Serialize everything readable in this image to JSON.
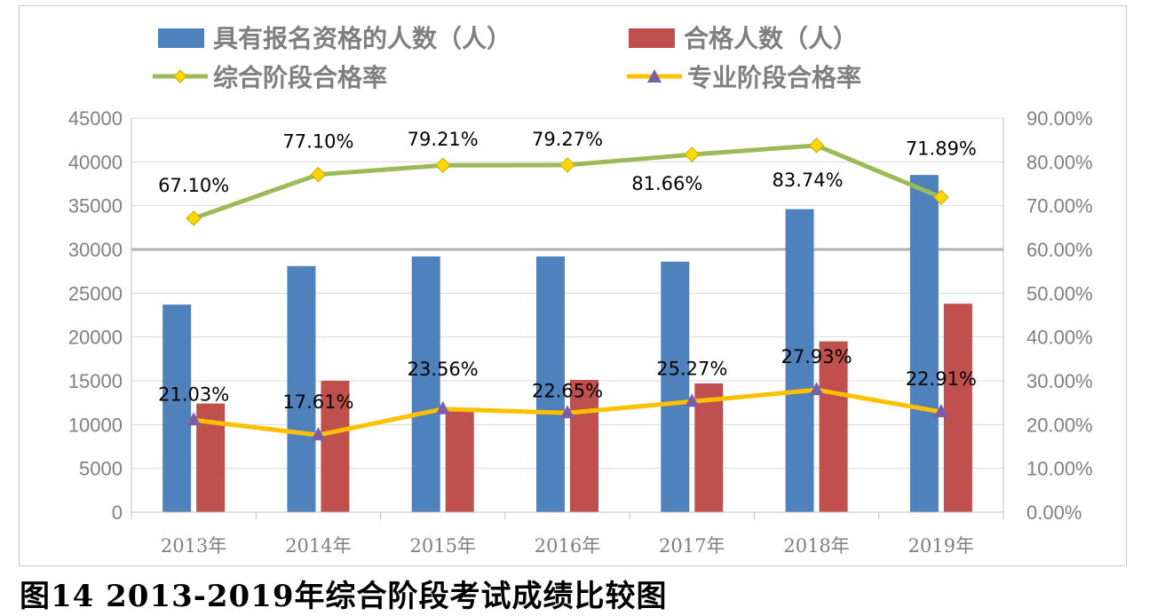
{
  "caption": "图14  2013-2019年综合阶段考试成绩比较图",
  "chart_data": {
    "type": "bar",
    "categories": [
      "2013年",
      "2014年",
      "2015年",
      "2016年",
      "2017年",
      "2018年",
      "2019年"
    ],
    "series": [
      {
        "name": "具有报名资格的人数（人）",
        "kind": "bar",
        "axis": "left",
        "color": "#4f81bd",
        "values": [
          23700,
          28100,
          29200,
          29200,
          28600,
          34600,
          38500
        ]
      },
      {
        "name": "合格人数（人）",
        "kind": "bar",
        "axis": "left",
        "color": "#c0504d",
        "values": [
          12400,
          15000,
          11800,
          15100,
          14700,
          19500,
          23800
        ]
      },
      {
        "name": "综合阶段合格率",
        "kind": "line",
        "axis": "right",
        "color": "#9bbb59",
        "marker": "diamond",
        "marker_color": "#ffd700",
        "values": [
          67.1,
          77.1,
          79.21,
          79.27,
          81.66,
          83.74,
          71.89
        ],
        "labels": [
          "67.10%",
          "77.10%",
          "79.21%",
          "79.27%",
          "81.66%",
          "83.74%",
          "71.89%"
        ]
      },
      {
        "name": "专业阶段合格率",
        "kind": "line",
        "axis": "right",
        "color": "#ffc000",
        "marker": "triangle",
        "marker_color": "#7a5ea8",
        "values": [
          21.03,
          17.61,
          23.56,
          22.65,
          25.27,
          27.93,
          22.91
        ],
        "labels": [
          "21.03%",
          "17.61%",
          "23.56%",
          "22.65%",
          "25.27%",
          "27.93%",
          "22.91%"
        ]
      }
    ],
    "y_left": {
      "lim": [
        0,
        45000
      ],
      "ticks": [
        "0",
        "5000",
        "10000",
        "15000",
        "20000",
        "25000",
        "30000",
        "35000",
        "40000",
        "45000"
      ]
    },
    "y_right": {
      "lim": [
        0,
        90
      ],
      "ticks": [
        "0.00%",
        "10.00%",
        "20.00%",
        "30.00%",
        "40.00%",
        "50.00%",
        "60.00%",
        "70.00%",
        "80.00%",
        "90.00%"
      ]
    },
    "legend_position": "top",
    "grid": true,
    "title": "",
    "xlabel": "",
    "ylabel": ""
  }
}
